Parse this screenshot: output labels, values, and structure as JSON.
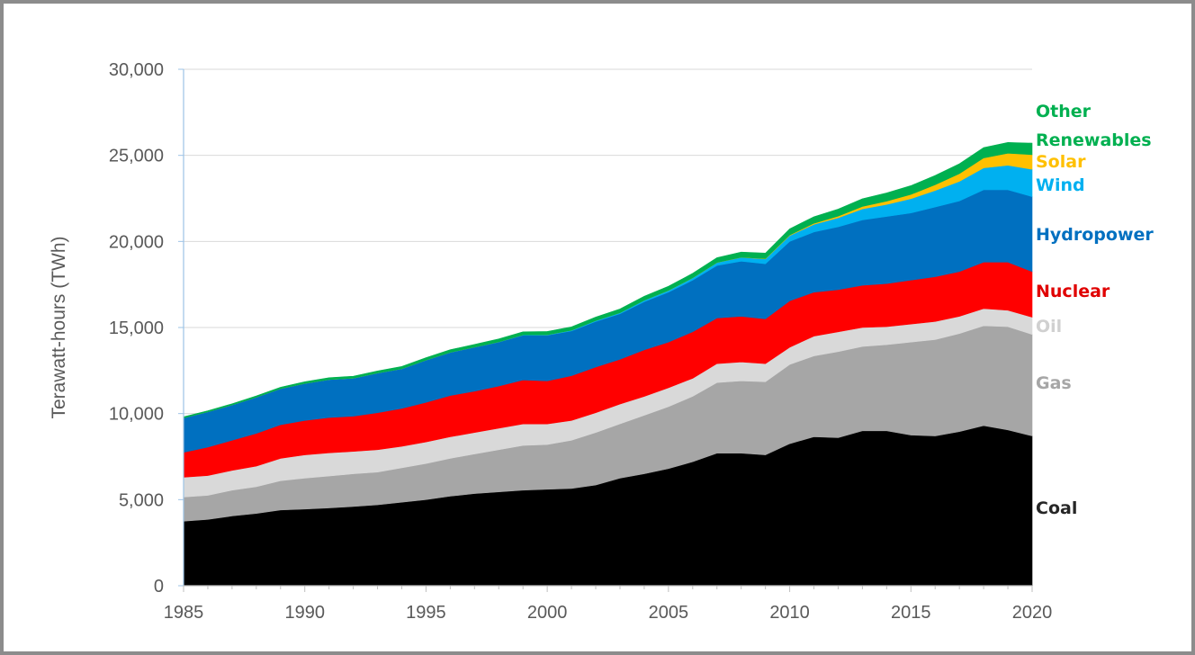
{
  "chart_data": {
    "type": "area",
    "stacked": true,
    "title": "",
    "xlabel": "",
    "ylabel": "Terawatt-hours (TWh)",
    "xlim": [
      1985,
      2020
    ],
    "ylim": [
      0,
      30000
    ],
    "x_ticks": [
      "1985",
      "1990",
      "1995",
      "2000",
      "2005",
      "2010",
      "2015",
      "2020"
    ],
    "y_ticks": [
      "0",
      "5,000",
      "10,000",
      "15,000",
      "20,000",
      "25,000",
      "30,000"
    ],
    "grid": "horizontal",
    "legend": "right, inline labels",
    "x": [
      1985,
      1986,
      1987,
      1988,
      1989,
      1990,
      1991,
      1992,
      1993,
      1994,
      1995,
      1996,
      1997,
      1998,
      1999,
      2000,
      2001,
      2002,
      2003,
      2004,
      2005,
      2006,
      2007,
      2008,
      2009,
      2010,
      2011,
      2012,
      2013,
      2014,
      2015,
      2016,
      2017,
      2018,
      2019,
      2020
    ],
    "series": [
      {
        "name": "Coal",
        "color": "#000000",
        "label_color": "#262626",
        "values": [
          3750,
          3850,
          4050,
          4200,
          4400,
          4450,
          4520,
          4600,
          4700,
          4850,
          5000,
          5200,
          5350,
          5450,
          5550,
          5600,
          5650,
          5850,
          6250,
          6500,
          6800,
          7200,
          7700,
          7700,
          7600,
          8250,
          8650,
          8600,
          9000,
          9000,
          8750,
          8700,
          8950,
          9300,
          9050,
          8700
        ]
      },
      {
        "name": "Gas",
        "color": "#a6a6a6",
        "label_color": "#a6a6a6",
        "values": [
          1400,
          1400,
          1500,
          1550,
          1700,
          1800,
          1850,
          1900,
          1900,
          2000,
          2100,
          2200,
          2300,
          2450,
          2600,
          2600,
          2800,
          3050,
          3150,
          3400,
          3600,
          3800,
          4100,
          4200,
          4250,
          4600,
          4700,
          5000,
          4900,
          5000,
          5400,
          5600,
          5700,
          5800,
          6000,
          5900
        ]
      },
      {
        "name": "Oil",
        "color": "#d9d9d9",
        "label_color": "#d0d0d0",
        "values": [
          1150,
          1150,
          1150,
          1200,
          1300,
          1350,
          1350,
          1300,
          1300,
          1250,
          1250,
          1250,
          1250,
          1250,
          1250,
          1200,
          1150,
          1150,
          1150,
          1100,
          1100,
          1050,
          1100,
          1100,
          1050,
          1000,
          1150,
          1150,
          1100,
          1050,
          1050,
          1050,
          1000,
          1000,
          950,
          1000
        ]
      },
      {
        "name": "Nuclear",
        "color": "#ff0000",
        "label_color": "#e00000",
        "values": [
          1450,
          1650,
          1750,
          1900,
          1950,
          2000,
          2050,
          2050,
          2150,
          2200,
          2300,
          2400,
          2400,
          2450,
          2550,
          2500,
          2600,
          2650,
          2600,
          2700,
          2650,
          2700,
          2650,
          2650,
          2600,
          2700,
          2550,
          2450,
          2450,
          2500,
          2550,
          2600,
          2600,
          2700,
          2800,
          2650
        ]
      },
      {
        "name": "Hydropower",
        "color": "#0070c0",
        "label_color": "#0070c0",
        "values": [
          2000,
          2050,
          2050,
          2100,
          2100,
          2150,
          2200,
          2200,
          2300,
          2300,
          2450,
          2500,
          2550,
          2550,
          2600,
          2650,
          2600,
          2650,
          2650,
          2800,
          2900,
          3000,
          3050,
          3200,
          3200,
          3450,
          3500,
          3650,
          3800,
          3900,
          3900,
          4050,
          4100,
          4200,
          4200,
          4350
        ]
      },
      {
        "name": "Wind",
        "color": "#00b0f0",
        "label_color": "#00b0f0",
        "values": [
          0,
          0,
          0,
          0,
          0,
          0,
          5,
          5,
          5,
          5,
          10,
          10,
          10,
          15,
          20,
          30,
          40,
          50,
          60,
          85,
          100,
          130,
          170,
          220,
          280,
          340,
          440,
          520,
          640,
          700,
          830,
          960,
          1140,
          1270,
          1420,
          1590
        ]
      },
      {
        "name": "Solar",
        "color": "#ffc000",
        "label_color": "#ffc000",
        "values": [
          0,
          0,
          0,
          0,
          0,
          0,
          0,
          0,
          0,
          0,
          0,
          0,
          0,
          0,
          0,
          0,
          0,
          0,
          0,
          0,
          4,
          6,
          8,
          12,
          20,
          32,
          64,
          100,
          140,
          190,
          250,
          330,
          450,
          580,
          700,
          850
        ]
      },
      {
        "name": "Other Renewables",
        "label_lines": [
          "Other",
          "Renewables"
        ],
        "color": "#00b050",
        "label_color": "#00b050",
        "values": [
          60,
          65,
          70,
          75,
          80,
          100,
          110,
          115,
          120,
          130,
          140,
          150,
          160,
          170,
          180,
          190,
          195,
          205,
          215,
          230,
          245,
          260,
          280,
          300,
          320,
          360,
          380,
          410,
          450,
          480,
          510,
          540,
          570,
          600,
          630,
          670
        ]
      }
    ]
  }
}
